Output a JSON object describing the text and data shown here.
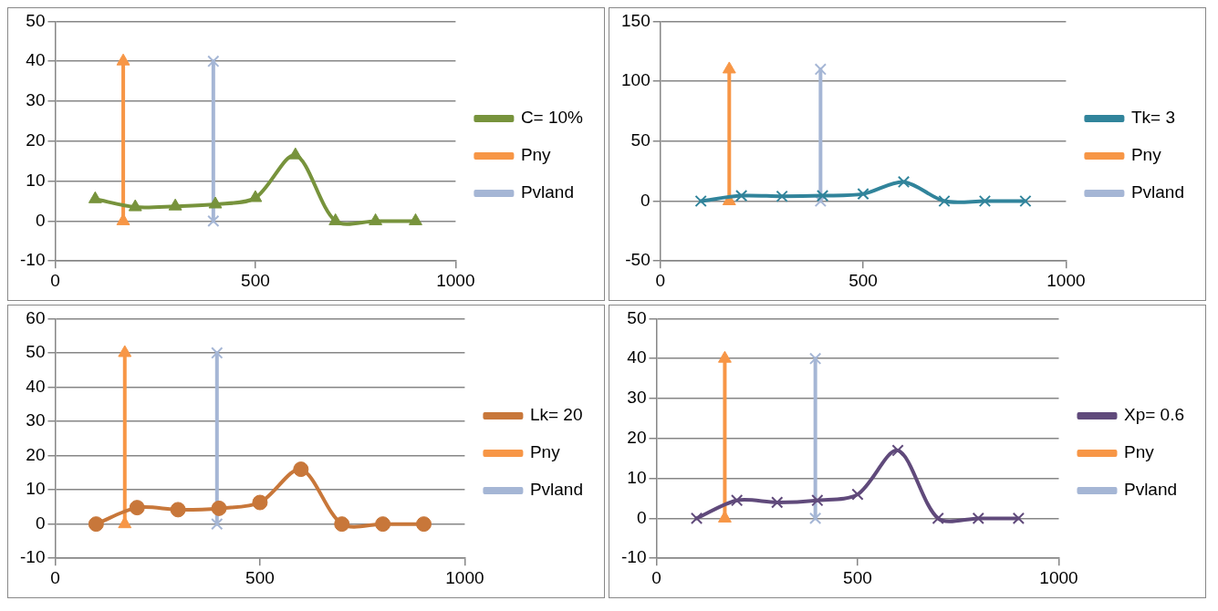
{
  "chart_data": [
    {
      "type": "line",
      "xlim": [
        0,
        1000
      ],
      "xticks": [
        0,
        500,
        1000
      ],
      "ylim": [
        -10,
        50
      ],
      "yticks": [
        -10,
        0,
        10,
        20,
        30,
        40,
        50
      ],
      "grid": "y",
      "legend": "right",
      "line_style": "solid",
      "series": [
        {
          "name": "C= 10%",
          "color": "#77933c",
          "marker": "triangle",
          "x": [
            100,
            200,
            300,
            400,
            500,
            600,
            700,
            800,
            900
          ],
          "values": [
            5.5,
            3.5,
            3.7,
            4.2,
            5.8,
            16.5,
            0,
            0,
            0
          ]
        },
        {
          "name": "Pny",
          "color": "#f79646",
          "marker": "triangle",
          "x": [
            170,
            170
          ],
          "values": [
            0,
            40
          ]
        },
        {
          "name": "Pvland",
          "color": "#a5b6d5",
          "marker": "cross",
          "x": [
            395,
            395
          ],
          "values": [
            0,
            40
          ]
        }
      ]
    },
    {
      "type": "line",
      "xlim": [
        0,
        1000
      ],
      "xticks": [
        0,
        500,
        1000
      ],
      "ylim": [
        -50,
        150
      ],
      "yticks": [
        -50,
        0,
        50,
        100,
        150
      ],
      "grid": "y",
      "legend": "right",
      "line_style": "solid",
      "series": [
        {
          "name": "Tk= 3",
          "color": "#31849b",
          "marker": "cross",
          "x": [
            100,
            200,
            300,
            400,
            500,
            600,
            700,
            800,
            900
          ],
          "values": [
            0,
            4.5,
            4,
            4.5,
            6,
            16,
            0,
            0,
            0
          ]
        },
        {
          "name": "Pny",
          "color": "#f79646",
          "marker": "triangle",
          "x": [
            170,
            170
          ],
          "values": [
            0,
            110
          ]
        },
        {
          "name": "Pvland",
          "color": "#a5b6d5",
          "marker": "cross",
          "x": [
            395,
            395
          ],
          "values": [
            0,
            110
          ]
        }
      ]
    },
    {
      "type": "line",
      "xlim": [
        0,
        1000
      ],
      "xticks": [
        0,
        500,
        1000
      ],
      "ylim": [
        -10,
        60
      ],
      "yticks": [
        -10,
        0,
        10,
        20,
        30,
        40,
        50,
        60
      ],
      "grid": "y",
      "legend": "right",
      "line_style": "solid",
      "series": [
        {
          "name": "Lk= 20",
          "color": "#c8773a",
          "marker": "circle",
          "x": [
            100,
            200,
            300,
            400,
            500,
            600,
            700,
            800,
            900
          ],
          "values": [
            0,
            4.8,
            4.2,
            4.6,
            6.3,
            16,
            0,
            0,
            0
          ]
        },
        {
          "name": "Pny",
          "color": "#f79646",
          "marker": "triangle",
          "x": [
            170,
            170
          ],
          "values": [
            0,
            50
          ]
        },
        {
          "name": "Pvland",
          "color": "#a5b6d5",
          "marker": "cross",
          "x": [
            395,
            395
          ],
          "values": [
            0,
            50
          ]
        }
      ]
    },
    {
      "type": "line",
      "xlim": [
        0,
        1000
      ],
      "xticks": [
        0,
        500,
        1000
      ],
      "ylim": [
        -10,
        50
      ],
      "yticks": [
        -10,
        0,
        10,
        20,
        30,
        40,
        50
      ],
      "grid": "y",
      "legend": "right",
      "line_style": "solid",
      "series": [
        {
          "name": "Xp= 0.6",
          "color": "#604a7b",
          "marker": "cross",
          "x": [
            100,
            200,
            300,
            400,
            500,
            600,
            700,
            800,
            900
          ],
          "values": [
            0,
            4.5,
            4,
            4.5,
            6,
            17,
            0,
            0,
            0
          ]
        },
        {
          "name": "Pny",
          "color": "#f79646",
          "marker": "triangle",
          "x": [
            170,
            170
          ],
          "values": [
            0,
            40
          ]
        },
        {
          "name": "Pvland",
          "color": "#a5b6d5",
          "marker": "cross",
          "x": [
            395,
            395
          ],
          "values": [
            0,
            40
          ]
        }
      ]
    }
  ]
}
